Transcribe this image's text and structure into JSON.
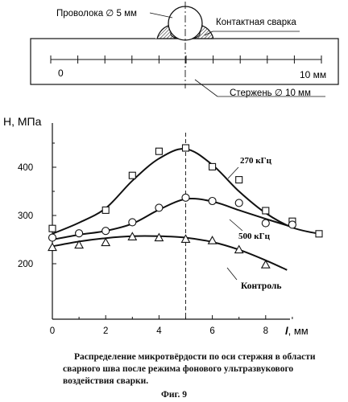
{
  "schematic": {
    "wire_label": "Проволока ∅ 5 мм",
    "weld_label": "Контактная сварка",
    "rod_label": "Стержень ∅ 10 мм",
    "scale_start": "0",
    "scale_end": "10 мм"
  },
  "chart_data": {
    "type": "scatter",
    "ylabel": "H, МПа",
    "xlabel": "l, мм",
    "xlim": [
      0,
      10
    ],
    "ylim": [
      190,
      460
    ],
    "x_ticks": [
      0,
      2,
      4,
      6,
      8
    ],
    "y_ticks": [
      200,
      300,
      400
    ],
    "grid": false,
    "reference_line_x": 5,
    "series": [
      {
        "name": "270 кГц",
        "marker": "square",
        "points": [
          [
            0,
            273
          ],
          [
            2,
            311
          ],
          [
            3,
            383
          ],
          [
            4,
            433
          ],
          [
            5,
            440
          ],
          [
            6,
            401
          ],
          [
            7,
            374
          ],
          [
            8,
            310
          ],
          [
            9,
            288
          ],
          [
            10,
            262
          ]
        ],
        "curve": [
          [
            0,
            262
          ],
          [
            1,
            285
          ],
          [
            2,
            315
          ],
          [
            3,
            372
          ],
          [
            4,
            418
          ],
          [
            5,
            438
          ],
          [
            6,
            405
          ],
          [
            7,
            350
          ],
          [
            8,
            305
          ],
          [
            9,
            275
          ],
          [
            10,
            262
          ]
        ]
      },
      {
        "name": "500 кГц",
        "marker": "circle",
        "points": [
          [
            0,
            254
          ],
          [
            1,
            263
          ],
          [
            2,
            268
          ],
          [
            3,
            286
          ],
          [
            4,
            316
          ],
          [
            5,
            337
          ],
          [
            6,
            330
          ],
          [
            7,
            326
          ],
          [
            8,
            284
          ],
          [
            9,
            281
          ]
        ],
        "curve": [
          [
            0,
            250
          ],
          [
            1,
            260
          ],
          [
            2,
            268
          ],
          [
            3,
            283
          ],
          [
            4,
            312
          ],
          [
            5,
            334
          ],
          [
            6,
            329
          ],
          [
            7,
            311
          ],
          [
            8,
            293
          ],
          [
            9,
            276
          ]
        ]
      },
      {
        "name": "Контроль",
        "marker": "triangle",
        "points": [
          [
            0,
            234
          ],
          [
            1,
            239
          ],
          [
            2,
            244
          ],
          [
            3,
            256
          ],
          [
            4,
            254
          ],
          [
            5,
            251
          ],
          [
            6,
            248
          ],
          [
            7,
            229
          ],
          [
            8,
            198
          ]
        ],
        "curve": [
          [
            0,
            236
          ],
          [
            1,
            246
          ],
          [
            2,
            253
          ],
          [
            3,
            257
          ],
          [
            4,
            257
          ],
          [
            5,
            254
          ],
          [
            6,
            245
          ],
          [
            7,
            229
          ],
          [
            8,
            207
          ],
          [
            8.8,
            187
          ]
        ]
      }
    ]
  },
  "caption": "Распределение микротвёрдости по оси стержня в области сварного шва после режима фонового ультразвукового воздействия сварки.",
  "figure_number": "Фиг. 9"
}
